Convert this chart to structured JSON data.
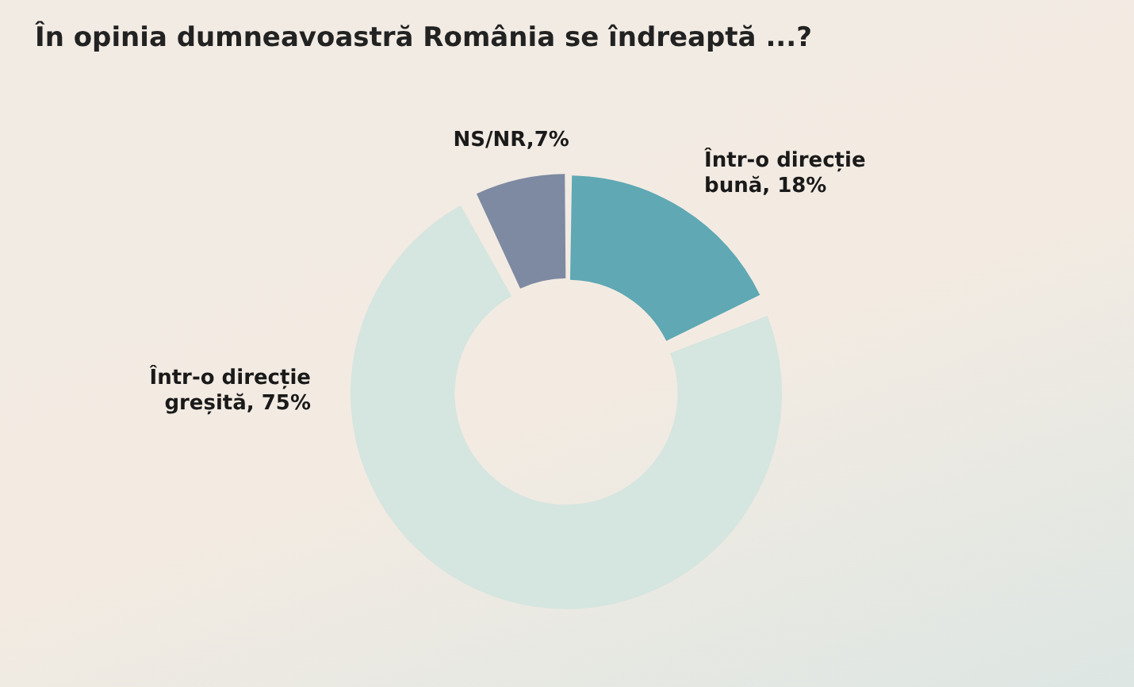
{
  "chart_data": {
    "type": "donut",
    "title": "În opinia dumneavoastră România se îndreaptă ...?",
    "categories": [
      "Într-o direcție bună",
      "Într-o direcție greșită",
      "NS/NR"
    ],
    "values": [
      18,
      75,
      7
    ],
    "value_labels": [
      "18%",
      "75%",
      "7%"
    ],
    "colors": [
      "#5fa8b4",
      "#d5e5df",
      "#7e8aa2"
    ],
    "legend": false
  }
}
